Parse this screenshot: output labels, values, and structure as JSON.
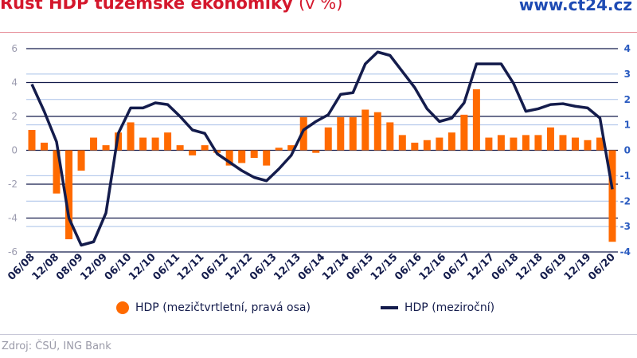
{
  "header": {
    "title": "Růst HDP tuzemské ekonomiky",
    "title_unit": "(v %)",
    "brand": "www.ct24.cz"
  },
  "chart_data": {
    "type": "bar+line",
    "title": "Růst HDP tuzemské ekonomiky (v %)",
    "left_axis": {
      "ylim": [
        -6,
        6
      ],
      "ticks": [
        "6",
        "4",
        "2",
        "0",
        "-2",
        "-4",
        "-6"
      ]
    },
    "right_axis": {
      "ylim": [
        -4,
        4
      ],
      "ticks": [
        "4",
        "3",
        "2",
        "1",
        "0",
        "-1",
        "-2",
        "-3",
        "-4"
      ]
    },
    "x_tick_labels": [
      "06/08",
      "12/08",
      "08/09",
      "12/09",
      "06/10",
      "12/10",
      "06/11",
      "12/11",
      "06/12",
      "12/12",
      "06/13",
      "12/13",
      "06/14",
      "12/14",
      "06/15",
      "12/15",
      "06/16",
      "12/16",
      "06/17",
      "12/17",
      "06/18",
      "12/18",
      "06/19",
      "12/19",
      "06/20"
    ],
    "series": [
      {
        "name": "HDP (mezičtvrtletní, pravá osa)",
        "type": "bar",
        "axis": "right",
        "color": "#ff6a00",
        "values": [
          0.8,
          0.3,
          -1.7,
          -3.5,
          -0.8,
          0.5,
          0.2,
          0.7,
          1.1,
          0.5,
          0.5,
          0.7,
          0.2,
          -0.2,
          0.2,
          -0.1,
          -0.6,
          -0.5,
          -0.3,
          -0.6,
          0.1,
          0.2,
          1.3,
          -0.1,
          0.9,
          1.3,
          1.3,
          1.6,
          1.5,
          1.1,
          0.6,
          0.3,
          0.4,
          0.5,
          0.7,
          1.4,
          2.4,
          0.5,
          0.6,
          0.5,
          0.6,
          0.6,
          0.9,
          0.6,
          0.5,
          0.4,
          0.5,
          -3.6
        ]
      },
      {
        "name": "HDP (meziroční)",
        "type": "line",
        "axis": "left",
        "color": "#141c4c",
        "values": [
          3.9,
          2.3,
          0.5,
          -4.0,
          -5.6,
          -5.4,
          -3.7,
          1.0,
          2.5,
          2.5,
          2.8,
          2.7,
          2.0,
          1.2,
          1.0,
          -0.2,
          -0.7,
          -1.2,
          -1.6,
          -1.8,
          -1.1,
          -0.3,
          1.2,
          1.7,
          2.1,
          3.3,
          3.4,
          5.1,
          5.8,
          5.6,
          4.65,
          3.7,
          2.45,
          1.7,
          1.9,
          2.8,
          5.1,
          5.1,
          5.1,
          3.95,
          2.3,
          2.45,
          2.7,
          2.75,
          2.6,
          2.5,
          1.9,
          -2.3
        ]
      }
    ],
    "grid": true,
    "legend": "bottom"
  },
  "legend": {
    "bar_label": "HDP (mezičtvrtletní, pravá osa)",
    "line_label": "HDP (meziroční)"
  },
  "footer": {
    "source": "Zdroj: ČSÚ, ING Bank"
  }
}
